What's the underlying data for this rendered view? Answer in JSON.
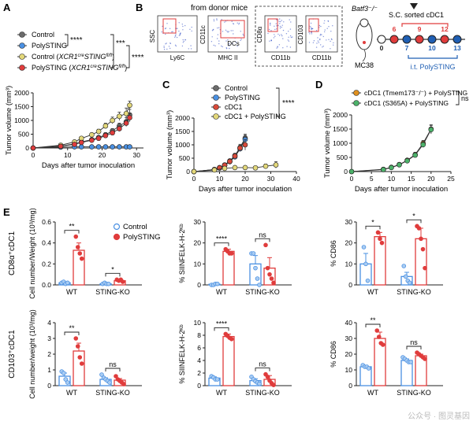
{
  "panel_letters": {
    "a": "A",
    "b": "B",
    "c": "C",
    "d": "D",
    "e": "E"
  },
  "colors": {
    "control": "#6b6b6b",
    "polysting": "#4a90e2",
    "control_xcr1": "#e3d87a",
    "polysting_xcr1": "#e03c3c",
    "cdc1_plain": "#d94a3a",
    "cdc1_tmem": "#e0901e",
    "cdc1_s365a": "#4cb26a",
    "bar_blue": "#4a90e2",
    "bar_red": "#e03c3c",
    "flow_dot": "#2040c0",
    "arrow_red": "#e03c3c",
    "arrow_blue": "#1f5fb4"
  },
  "flow": {
    "title": "from donor mice",
    "plot1": {
      "y": "SSC",
      "x": "Ly6C"
    },
    "plot2": {
      "y": "CD11c",
      "x": "MHC II",
      "inside": "DCs"
    },
    "plot3": {
      "y": "CD8α",
      "x": "CD11b"
    },
    "plot4": {
      "y": "CD103",
      "x": "CD11b"
    }
  },
  "schedule": {
    "mouse_label": "Batf3⁻/⁻",
    "tumor_label": "MC38",
    "sc_label": "S.C. sorted cDC1",
    "it_label": "i.t. PolySTING",
    "days": [
      "0",
      "6",
      "7",
      "9",
      "10",
      "12",
      "13"
    ],
    "red_days": [
      "6",
      "9",
      "12"
    ],
    "blue_days": [
      "7",
      "10",
      "13"
    ]
  },
  "chart_data": [
    {
      "panel": "A",
      "type": "line",
      "xlabel": "Days after tumor inoculation",
      "ylabel": "Tumor volume (mm³)",
      "xlim": [
        0,
        32
      ],
      "ylim": [
        0,
        2000
      ],
      "xticks": [
        "0",
        "10",
        "20",
        "30"
      ],
      "yticks": [
        "0",
        "500",
        "1000",
        "1500",
        "2000"
      ],
      "legend": [
        "Control",
        "PolySTING",
        "Control (XCR1creSTINGfl/fl)",
        "PolySTING (XCR1creSTINGfl/fl)"
      ],
      "significance": [
        "****",
        "***",
        "****"
      ],
      "series": [
        {
          "name": "Control",
          "x": [
            0,
            8,
            12,
            14,
            17,
            19,
            21,
            23,
            25,
            27,
            28
          ],
          "y": [
            0,
            70,
            150,
            220,
            300,
            380,
            480,
            620,
            800,
            950,
            1200
          ],
          "err": [
            0,
            20,
            30,
            40,
            50,
            60,
            70,
            80,
            100,
            150,
            200
          ]
        },
        {
          "name": "PolySTING",
          "x": [
            0,
            8,
            12,
            14,
            17,
            19,
            21,
            23,
            25,
            27,
            28
          ],
          "y": [
            0,
            30,
            40,
            40,
            40,
            40,
            40,
            40,
            40,
            40,
            40
          ],
          "err": [
            0,
            10,
            10,
            10,
            10,
            10,
            10,
            10,
            10,
            10,
            10
          ]
        },
        {
          "name": "Control (XCR1creSTINGfl/fl)",
          "x": [
            0,
            8,
            12,
            14,
            17,
            19,
            21,
            23,
            25,
            27,
            28
          ],
          "y": [
            0,
            100,
            220,
            350,
            480,
            600,
            800,
            1000,
            1150,
            1250,
            1550
          ],
          "err": [
            0,
            30,
            40,
            50,
            60,
            80,
            100,
            120,
            150,
            200,
            150
          ]
        },
        {
          "name": "PolySTING (XCR1creSTINGfl/fl)",
          "x": [
            0,
            8,
            12,
            14,
            17,
            19,
            21,
            23,
            25,
            27,
            28
          ],
          "y": [
            0,
            60,
            130,
            200,
            280,
            350,
            450,
            550,
            700,
            900,
            1100
          ],
          "err": [
            0,
            20,
            30,
            40,
            50,
            60,
            70,
            80,
            100,
            120,
            150
          ]
        }
      ]
    },
    {
      "panel": "C",
      "type": "line",
      "xlabel": "Days after tumor inoculation",
      "ylabel": "Tumor volume (mm³)",
      "xlim": [
        0,
        40
      ],
      "ylim": [
        0,
        2000
      ],
      "xticks": [
        "0",
        "10",
        "20",
        "30",
        "40"
      ],
      "yticks": [
        "0",
        "500",
        "1000",
        "1500",
        "2000"
      ],
      "legend": [
        "Control",
        "PolySTING",
        "cDC1",
        "cDC1 + PolySTING"
      ],
      "significance": [
        "****"
      ],
      "series": [
        {
          "name": "Control",
          "x": [
            0,
            8,
            10,
            12,
            14,
            16,
            18,
            20
          ],
          "y": [
            0,
            80,
            150,
            250,
            400,
            600,
            900,
            1250
          ],
          "err": [
            0,
            20,
            30,
            40,
            60,
            80,
            120,
            150
          ]
        },
        {
          "name": "PolySTING",
          "x": [
            0,
            8,
            10,
            12,
            14,
            16,
            18,
            20
          ],
          "y": [
            0,
            70,
            130,
            230,
            370,
            550,
            850,
            1200
          ],
          "err": [
            0,
            20,
            30,
            40,
            60,
            80,
            100,
            150
          ]
        },
        {
          "name": "cDC1",
          "x": [
            0,
            8,
            10,
            12,
            14,
            16,
            18,
            20
          ],
          "y": [
            0,
            75,
            140,
            240,
            380,
            580,
            880,
            1000
          ],
          "err": [
            0,
            20,
            30,
            40,
            60,
            80,
            100,
            200
          ]
        },
        {
          "name": "cDC1 + PolySTING",
          "x": [
            0,
            8,
            12,
            16,
            20,
            24,
            28,
            32
          ],
          "y": [
            0,
            60,
            120,
            150,
            150,
            140,
            200,
            250
          ],
          "err": [
            0,
            20,
            30,
            40,
            50,
            60,
            80,
            120
          ]
        }
      ]
    },
    {
      "panel": "D",
      "type": "line",
      "xlabel": "Days after tumor inoculation",
      "ylabel": "Tumor volume (mm³)",
      "xlim": [
        0,
        25
      ],
      "ylim": [
        0,
        2000
      ],
      "xticks": [
        "0",
        "5",
        "10",
        "15",
        "20",
        "25"
      ],
      "yticks": [
        "0",
        "500",
        "1000",
        "1500",
        "2000"
      ],
      "legend": [
        "cDC1 (Tmem173⁻/⁻) + PolySTING",
        "cDC1 (S365A) + PolySTING"
      ],
      "significance": [
        "ns"
      ],
      "series": [
        {
          "name": "cDC1 (Tmem173-/-) + PolySTING",
          "x": [
            0,
            8,
            10,
            12,
            14,
            16,
            18,
            20
          ],
          "y": [
            0,
            80,
            150,
            250,
            400,
            600,
            1000,
            1500
          ],
          "err": [
            0,
            20,
            30,
            40,
            60,
            80,
            100,
            150
          ]
        },
        {
          "name": "cDC1 (S365A) + PolySTING",
          "x": [
            0,
            8,
            10,
            12,
            14,
            16,
            18,
            20
          ],
          "y": [
            0,
            70,
            140,
            240,
            380,
            580,
            950,
            1480
          ],
          "err": [
            0,
            20,
            30,
            40,
            60,
            80,
            100,
            150
          ]
        }
      ]
    },
    {
      "panel": "E",
      "type": "bar",
      "row": "CD8α⁺cDC1",
      "row_label": "CD8α⁺cDC1",
      "legend": [
        "Control",
        "PolySTING"
      ],
      "plots": [
        {
          "ylabel": "Cell number/Weight (10³/mg)",
          "ylim": [
            0,
            0.6
          ],
          "yticks": [
            "0.0",
            "0.2",
            "0.4",
            "0.6"
          ],
          "categories": [
            "WT",
            "STING-KO"
          ],
          "bars": [
            {
              "g": "WT",
              "c": "Control",
              "v": 0.02,
              "e": 0.01,
              "pts": [
                0.02,
                0.03,
                0.01,
                0.02
              ]
            },
            {
              "g": "WT",
              "c": "PolySTING",
              "v": 0.33,
              "e": 0.07,
              "pts": [
                0.46,
                0.36,
                0.3,
                0.25
              ]
            },
            {
              "g": "STING-KO",
              "c": "Control",
              "v": 0.01,
              "e": 0.005,
              "pts": [
                0.01,
                0.02,
                0.01,
                0.01
              ]
            },
            {
              "g": "STING-KO",
              "c": "PolySTING",
              "v": 0.04,
              "e": 0.01,
              "pts": [
                0.05,
                0.04,
                0.05,
                0.03
              ]
            }
          ],
          "sig": [
            "**",
            "*"
          ]
        },
        {
          "ylabel": "% SIINFELK-H-2ᴷᵇ",
          "ylim": [
            0,
            30
          ],
          "yticks": [
            "0",
            "10",
            "20",
            "30"
          ],
          "categories": [
            "WT",
            "STING-KO"
          ],
          "bars": [
            {
              "g": "WT",
              "c": "Control",
              "v": 0.3,
              "e": 0.3,
              "pts": [
                0,
                0,
                0.5,
                0.5
              ]
            },
            {
              "g": "WT",
              "c": "PolySTING",
              "v": 16,
              "e": 1,
              "pts": [
                17,
                16,
                15,
                15
              ]
            },
            {
              "g": "STING-KO",
              "c": "Control",
              "v": 10,
              "e": 4,
              "pts": [
                15,
                15,
                8,
                3,
                0
              ]
            },
            {
              "g": "STING-KO",
              "c": "PolySTING",
              "v": 8,
              "e": 5,
              "pts": [
                19,
                8,
                5,
                3,
                1
              ]
            }
          ],
          "sig": [
            "****",
            "ns"
          ]
        },
        {
          "ylabel": "% CD86",
          "ylim": [
            0,
            30
          ],
          "yticks": [
            "0",
            "10",
            "20",
            "30"
          ],
          "categories": [
            "WT",
            "STING-KO"
          ],
          "bars": [
            {
              "g": "WT",
              "c": "Control",
              "v": 10,
              "e": 5,
              "pts": [
                18,
                10,
                2
              ]
            },
            {
              "g": "WT",
              "c": "PolySTING",
              "v": 23,
              "e": 2,
              "pts": [
                25,
                22,
                20
              ]
            },
            {
              "g": "STING-KO",
              "c": "Control",
              "v": 4,
              "e": 2,
              "pts": [
                9,
                4,
                2,
                1
              ]
            },
            {
              "g": "STING-KO",
              "c": "PolySTING",
              "v": 22,
              "e": 5,
              "pts": [
                28,
                27,
                22,
                17,
                8
              ]
            }
          ],
          "sig": [
            "*",
            "*"
          ]
        }
      ]
    },
    {
      "panel": "E",
      "type": "bar",
      "row": "CD103⁺cDC1",
      "row_label": "CD103⁺cDC1",
      "plots": [
        {
          "ylabel": "Cell number/weight (10³/mg)",
          "ylim": [
            0,
            4
          ],
          "yticks": [
            "0",
            "1",
            "2",
            "3",
            "4"
          ],
          "categories": [
            "WT",
            "STING-KO"
          ],
          "bars": [
            {
              "g": "WT",
              "c": "Control",
              "v": 0.6,
              "e": 0.2,
              "pts": [
                0.9,
                0.8,
                0.4,
                0.2
              ]
            },
            {
              "g": "WT",
              "c": "PolySTING",
              "v": 2.2,
              "e": 0.5,
              "pts": [
                3.0,
                2.5,
                1.8,
                1.4
              ]
            },
            {
              "g": "STING-KO",
              "c": "Control",
              "v": 0.4,
              "e": 0.1,
              "pts": [
                0.7,
                0.5,
                0.4,
                0.3,
                0.2
              ]
            },
            {
              "g": "STING-KO",
              "c": "PolySTING",
              "v": 0.35,
              "e": 0.1,
              "pts": [
                0.6,
                0.4,
                0.3,
                0.2,
                0.1
              ]
            }
          ],
          "sig": [
            "**",
            "ns"
          ]
        },
        {
          "ylabel": "% SIINFELK-H-2ᴷᵇ",
          "ylim": [
            0,
            10
          ],
          "yticks": [
            "0",
            "2",
            "4",
            "6",
            "8",
            "10"
          ],
          "categories": [
            "WT",
            "STING-KO"
          ],
          "bars": [
            {
              "g": "WT",
              "c": "Control",
              "v": 1.2,
              "e": 0.2,
              "pts": [
                1.5,
                1.3,
                1.0,
                1.0
              ]
            },
            {
              "g": "WT",
              "c": "PolySTING",
              "v": 7.8,
              "e": 0.4,
              "pts": [
                8.2,
                7.9,
                7.6,
                7.4
              ]
            },
            {
              "g": "STING-KO",
              "c": "Control",
              "v": 0.8,
              "e": 0.3,
              "pts": [
                1.4,
                1.0,
                0.7,
                0.5,
                0.3
              ]
            },
            {
              "g": "STING-KO",
              "c": "PolySTING",
              "v": 1.0,
              "e": 0.6,
              "pts": [
                1.8,
                1.4,
                0.8,
                0.4,
                0.1
              ]
            }
          ],
          "sig": [
            "****",
            "ns"
          ]
        },
        {
          "ylabel": "% CD86",
          "ylim": [
            0,
            40
          ],
          "yticks": [
            "0",
            "10",
            "20",
            "30",
            "40"
          ],
          "categories": [
            "WT",
            "STING-KO"
          ],
          "bars": [
            {
              "g": "WT",
              "c": "Control",
              "v": 12,
              "e": 1,
              "pts": [
                13,
                12,
                12,
                11
              ]
            },
            {
              "g": "WT",
              "c": "PolySTING",
              "v": 30,
              "e": 4,
              "pts": [
                35,
                31,
                27,
                26
              ]
            },
            {
              "g": "STING-KO",
              "c": "Control",
              "v": 16,
              "e": 1,
              "pts": [
                18,
                17,
                16,
                15,
                15
              ]
            },
            {
              "g": "STING-KO",
              "c": "PolySTING",
              "v": 19,
              "e": 1,
              "pts": [
                21,
                20,
                19,
                18,
                17
              ]
            }
          ],
          "sig": [
            "**",
            "ns"
          ]
        }
      ]
    }
  ],
  "watermark": "公众号 · 图灵基因"
}
